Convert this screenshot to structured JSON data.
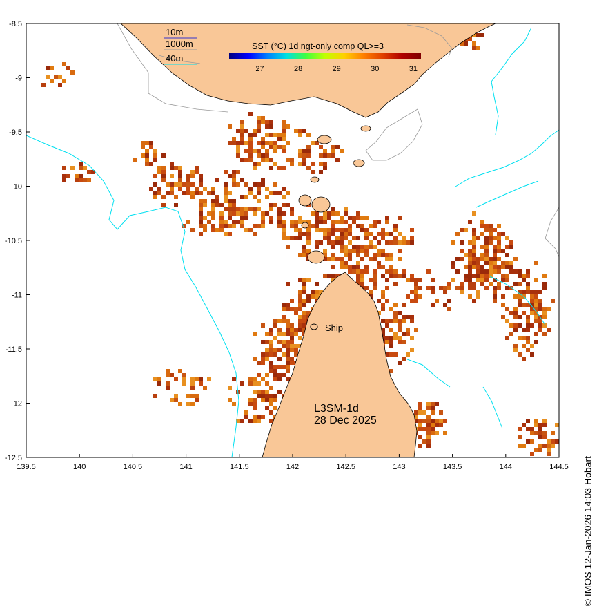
{
  "colorbar": {
    "title": "SST (°C) 1d ngt-only comp QL>=3",
    "min": 26.2,
    "max": 31.2,
    "ticks": [
      "27",
      "28",
      "29",
      "30",
      "31"
    ],
    "colors": [
      "#00007f",
      "#0000ff",
      "#0080ff",
      "#00e0e0",
      "#40ff40",
      "#c0ff00",
      "#ffd000",
      "#ff8000",
      "#e04000",
      "#b00000",
      "#800000"
    ]
  },
  "legend": {
    "items": [
      {
        "label": "10m",
        "color": "#3333cc"
      },
      {
        "label": "1000m",
        "color": "#999999"
      },
      {
        "label": "40m",
        "color": "#00e0f0"
      }
    ]
  },
  "axes": {
    "x_ticks": [
      "139.5",
      "140",
      "140.5",
      "141",
      "141.5",
      "142",
      "142.5",
      "143",
      "143.5",
      "144",
      "144.5"
    ],
    "y_ticks": [
      "-8.5",
      "-9",
      "-9.5",
      "-10",
      "-10.5",
      "-11",
      "-11.5",
      "-12",
      "-12.5"
    ],
    "xlim": [
      139.5,
      144.5
    ],
    "ylim": [
      -12.5,
      -8.5
    ]
  },
  "annotations": {
    "ship_label": "Ship",
    "product": "L3SM-1d",
    "date": "28 Dec 2025"
  },
  "credit": "© IMOS 12-Jan-2026 14:03 Hobart",
  "colors": {
    "land": "#f9c797",
    "coast": "#000000",
    "bathy_1000m": "#999999",
    "bathy_40m": "#00e0f0",
    "frame": "#000000"
  }
}
